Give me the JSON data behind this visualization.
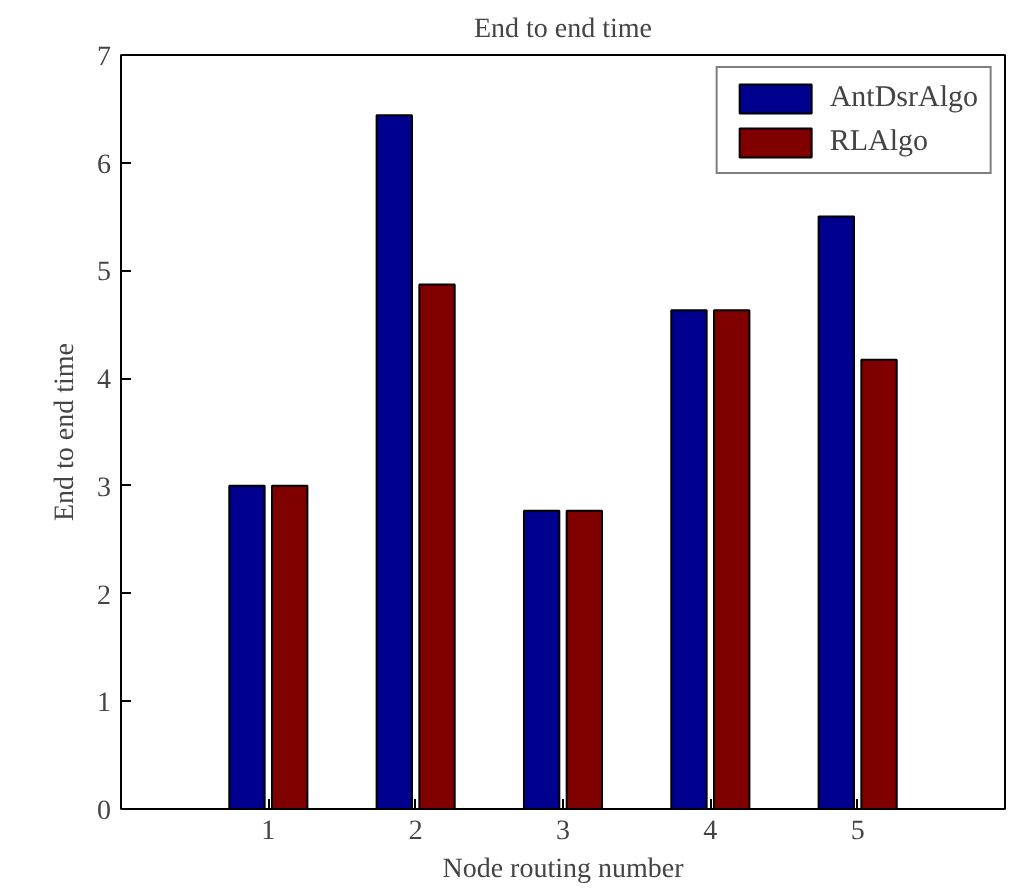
{
  "chart_data": {
    "type": "bar",
    "title": "End to end time",
    "xlabel": "Node routing number",
    "ylabel": "End to end time",
    "x": [
      1,
      2,
      3,
      4,
      5
    ],
    "xlim": [
      0,
      6
    ],
    "xticks": [
      1,
      2,
      3,
      4,
      5
    ],
    "ylim": [
      0,
      7
    ],
    "yticks": [
      0,
      1,
      2,
      3,
      4,
      5,
      6,
      7
    ],
    "series": [
      {
        "name": "AntDsrAlgo",
        "color": "#00008f",
        "values": [
          3.0,
          6.44,
          2.77,
          4.63,
          5.5
        ]
      },
      {
        "name": "RLAlgo",
        "color": "#800000",
        "values": [
          3.0,
          4.87,
          2.77,
          4.63,
          4.17
        ]
      }
    ],
    "legend": "top right",
    "grid": false
  }
}
